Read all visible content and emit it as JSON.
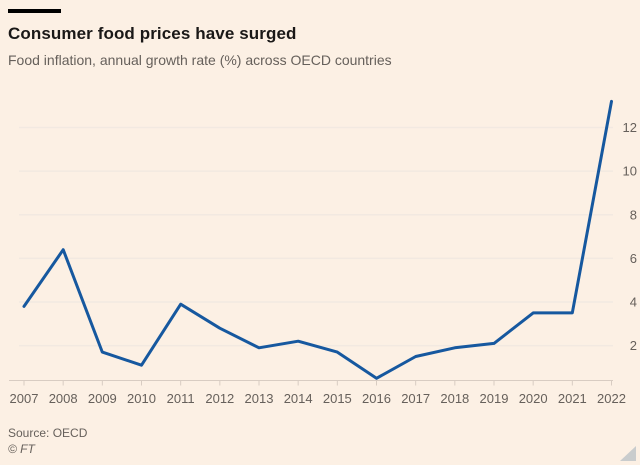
{
  "header": {
    "title": "Consumer food prices have surged",
    "subtitle": "Food inflation, annual growth rate (%) across OECD countries"
  },
  "footer": {
    "source": "Source: OECD",
    "copyright": "© FT"
  },
  "colors": {
    "background": "#FCF0E4",
    "line": "#16589F",
    "grid": "#F2E9E1",
    "axis": "#D8CCC2",
    "title_text": "#1A1817",
    "muted_text": "#66605B",
    "motif_bar": "#000000",
    "resize_handle": "#C9CCCD"
  },
  "chart_data": {
    "type": "line",
    "title": "Consumer food prices have surged",
    "subtitle": "Food inflation, annual growth rate (%) across OECD countries",
    "x": [
      2007,
      2008,
      2009,
      2010,
      2011,
      2012,
      2013,
      2014,
      2015,
      2016,
      2017,
      2018,
      2019,
      2020,
      2021,
      2022
    ],
    "values": [
      3.8,
      6.4,
      1.7,
      1.1,
      3.9,
      2.8,
      1.9,
      2.2,
      1.7,
      0.5,
      1.5,
      1.9,
      2.1,
      3.5,
      3.5,
      13.2
    ],
    "series_name": "Food inflation, annual growth rate (%)",
    "xlabel": "",
    "ylabel": "",
    "y_ticks": [
      2,
      4,
      6,
      8,
      10,
      12
    ],
    "x_tick_labels": [
      "2007",
      "2008",
      "2009",
      "2010",
      "2011",
      "2012",
      "2013",
      "2014",
      "2015",
      "2016",
      "2017",
      "2018",
      "2019",
      "2020",
      "2021",
      "2022"
    ],
    "ylim": [
      0.4,
      13.4
    ],
    "xlim": [
      2007,
      2022
    ],
    "grid": true,
    "legend": false,
    "y_axis_side": "right"
  }
}
